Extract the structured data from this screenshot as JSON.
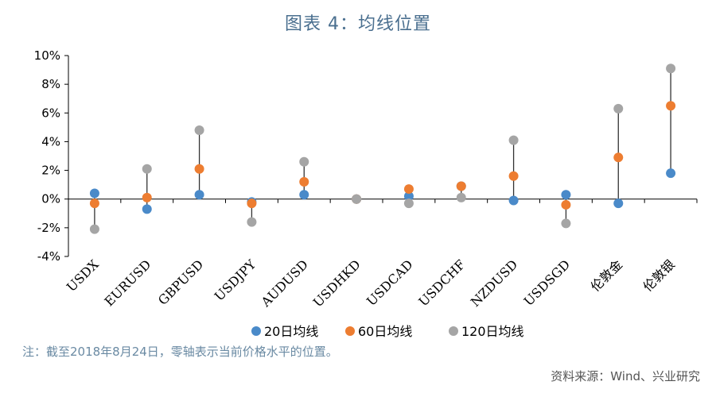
{
  "chart_data": {
    "type": "scatter",
    "title": "图表 4：均线位置",
    "categories": [
      "USDX",
      "EURUSD",
      "GBPUSD",
      "USDJPY",
      "AUDUSD",
      "USDHKD",
      "USDCAD",
      "USDCHF",
      "NZDUSD",
      "USDSGD",
      "伦敦金",
      "伦敦银"
    ],
    "series": [
      {
        "name": "20日均线",
        "color": "#4a8ac9",
        "values": [
          0.4,
          -0.7,
          0.3,
          -0.2,
          0.3,
          0.0,
          0.2,
          0.9,
          -0.1,
          0.3,
          -0.3,
          1.8
        ]
      },
      {
        "name": "60日均线",
        "color": "#ed7d31",
        "values": [
          -0.3,
          0.1,
          2.1,
          -0.3,
          1.2,
          0.0,
          0.7,
          0.9,
          1.6,
          -0.4,
          2.9,
          6.5
        ]
      },
      {
        "name": "120日均线",
        "color": "#a5a5a5",
        "values": [
          -2.1,
          2.1,
          4.8,
          -1.6,
          2.6,
          0.0,
          -0.3,
          0.1,
          4.1,
          -1.7,
          6.3,
          9.1
        ]
      }
    ],
    "ylim": [
      -4,
      10
    ],
    "yticks": [
      -4,
      -2,
      0,
      2,
      4,
      6,
      8,
      10
    ],
    "ytick_labels": [
      "-4%",
      "-2%",
      "0%",
      "2%",
      "4%",
      "6%",
      "8%",
      "10%"
    ],
    "legend_position": "bottom",
    "grid": false
  },
  "note": "注：截至2018年8月24日，零轴表示当前价格水平的位置。",
  "source": "资料来源：Wind、兴业研究"
}
